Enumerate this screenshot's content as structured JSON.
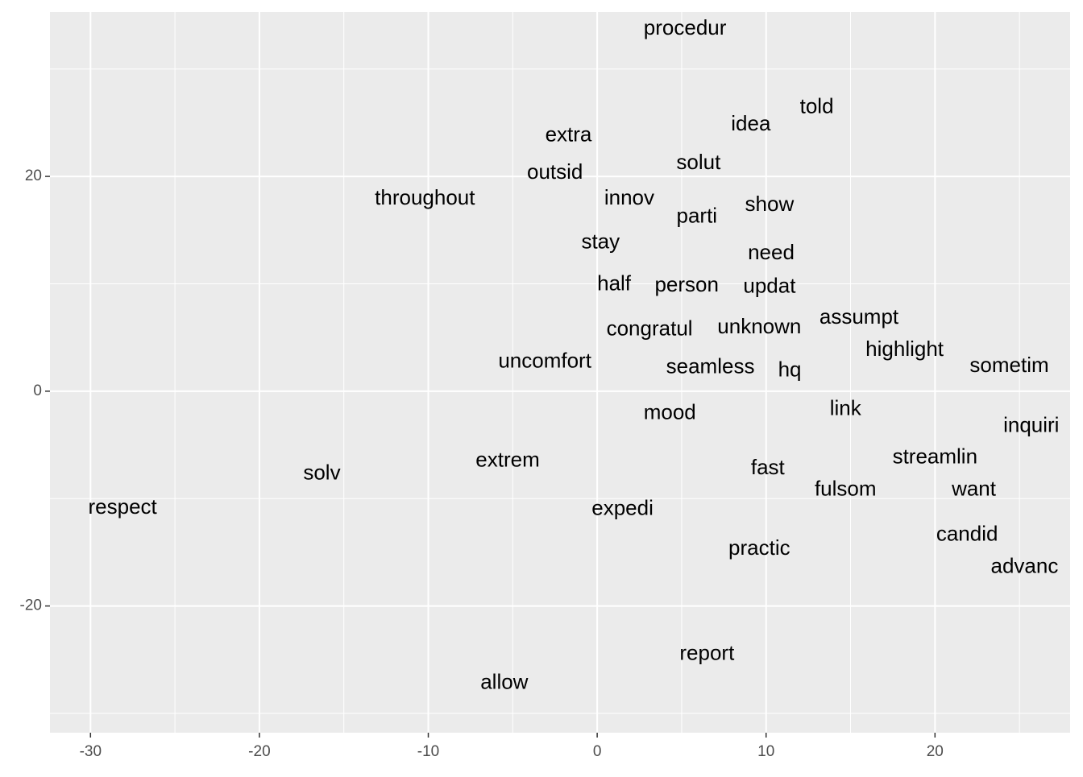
{
  "chart_data": {
    "type": "text_scatter",
    "labels": [
      "procedur",
      "told",
      "idea",
      "extra",
      "solut",
      "outsid",
      "throughout",
      "innov",
      "show",
      "parti",
      "stay",
      "need",
      "half",
      "person",
      "updat",
      "assumpt",
      "unknown",
      "congratul",
      "highlight",
      "uncomfort",
      "seamless",
      "sometim",
      "hq",
      "link",
      "mood",
      "inquiri",
      "streamlin",
      "extrem",
      "fast",
      "solv",
      "fulsom",
      "want",
      "respect",
      "expedi",
      "candid",
      "practic",
      "advanc",
      "report",
      "allow"
    ],
    "x": [
      5.2,
      13.0,
      9.1,
      -1.7,
      6.0,
      -2.5,
      -10.2,
      1.9,
      10.2,
      5.9,
      0.2,
      10.3,
      1.0,
      5.3,
      10.2,
      15.5,
      9.6,
      3.1,
      18.2,
      -3.1,
      6.7,
      24.4,
      11.4,
      14.7,
      4.3,
      25.7,
      20.0,
      -5.3,
      10.1,
      -16.3,
      14.7,
      22.3,
      -28.1,
      1.5,
      21.9,
      9.6,
      25.3,
      6.5,
      -5.5
    ],
    "y": [
      33.7,
      26.4,
      24.8,
      23.8,
      21.2,
      20.3,
      17.9,
      17.9,
      17.3,
      16.2,
      13.8,
      12.8,
      9.9,
      9.8,
      9.7,
      6.8,
      5.9,
      5.7,
      3.8,
      2.7,
      2.2,
      2.3,
      1.9,
      -1.7,
      -2.1,
      -3.3,
      -6.2,
      -6.5,
      -7.2,
      -7.7,
      -9.2,
      -9.2,
      -10.9,
      -11.0,
      -13.4,
      -14.7,
      -16.4,
      -24.5,
      -27.2
    ],
    "color": "#000000",
    "xlim": [
      -32.4,
      28.0
    ],
    "ylim": [
      -31.8,
      35.3
    ],
    "xticks": [
      -30,
      -20,
      -10,
      0,
      10,
      20
    ],
    "yticks": [
      -20,
      0,
      20
    ],
    "x_minor_breaks": [
      -25,
      -15,
      -5,
      5,
      15,
      25
    ],
    "y_minor_breaks": [
      -30,
      -10,
      10,
      30
    ],
    "grid": true
  }
}
